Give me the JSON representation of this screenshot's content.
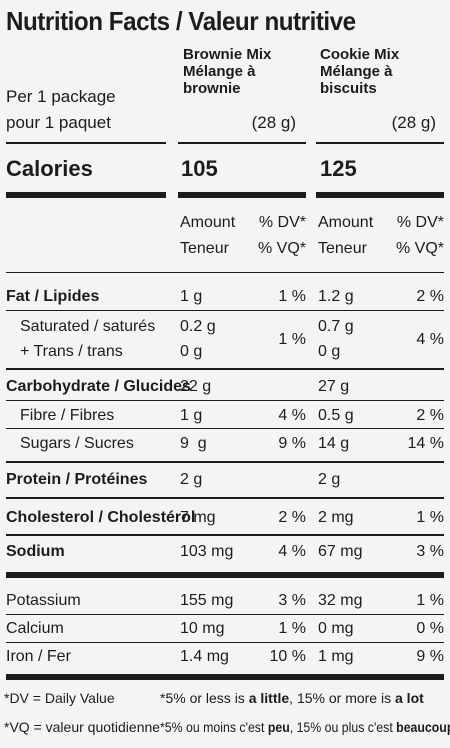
{
  "title": "Nutrition Facts / Valeur nutritive",
  "columns": [
    {
      "name_en": "Brownie Mix",
      "name_fr1": "Mélange à",
      "name_fr2": "brownie",
      "size": "(28 g)",
      "calories": "105"
    },
    {
      "name_en": "Cookie Mix",
      "name_fr1": "Mélange à",
      "name_fr2": "biscuits",
      "size": "(28 g)",
      "calories": "125"
    }
  ],
  "serving": {
    "line1": "Per 1 package",
    "line2": "pour 1 paquet"
  },
  "calories_label": "Calories",
  "headers": {
    "amount": "Amount",
    "teneur": "Teneur",
    "dv": "% DV*",
    "vq": "% VQ*"
  },
  "rows": {
    "fat": {
      "label": "Fat / Lipides",
      "a1": "1 g",
      "d1": "1 %",
      "a2": "1.2 g",
      "d2": "2 %"
    },
    "saturated": {
      "label": "Saturated / saturés",
      "a1": "0.2 g",
      "a2": "0.7 g"
    },
    "trans": {
      "label": "+ Trans / trans",
      "a1": "0 g",
      "a2": "0 g"
    },
    "sat_trans_dv": {
      "d1": "1 %",
      "d2": "4 %"
    },
    "carb": {
      "label": "Carbohydrate / Glucides",
      "a1": "22 g",
      "a2": "27 g"
    },
    "fibre": {
      "label": "Fibre / Fibres",
      "a1": "1 g",
      "d1": "4 %",
      "a2": "0.5 g",
      "d2": "2 %"
    },
    "sugars": {
      "label": "Sugars / Sucres",
      "a1": "9  g",
      "d1": "9 %",
      "a2": "14 g",
      "d2": "14 %"
    },
    "protein": {
      "label": "Protein / Protéines",
      "a1": "2 g",
      "a2": "2 g"
    },
    "cholesterol": {
      "label": "Cholesterol / Cholestérol",
      "a1": "7 mg",
      "d1": "2 %",
      "a2": "2 mg",
      "d2": "1 %"
    },
    "sodium": {
      "label": "Sodium",
      "a1": "103 mg",
      "d1": "4 %",
      "a2": "67 mg",
      "d2": "3 %"
    },
    "potassium": {
      "label": "Potassium",
      "a1": "155 mg",
      "d1": "3 %",
      "a2": "32 mg",
      "d2": "1 %"
    },
    "calcium": {
      "label": "Calcium",
      "a1": "10 mg",
      "d1": "1 %",
      "a2": "0 mg",
      "d2": "0 %"
    },
    "iron": {
      "label": "Iron / Fer",
      "a1": "1.4 mg",
      "d1": "10 %",
      "a2": "1 mg",
      "d2": "9 %"
    }
  },
  "footnotes": {
    "dv": "*DV = Daily Value",
    "vq": "*VQ = valeur quotidienne",
    "en_pre": "*5% or less is ",
    "en_little": "a little",
    "en_mid": ", 15% or more is ",
    "en_lot": "a lot",
    "fr_pre": "*5% ou moins c'est ",
    "fr_peu": "peu",
    "fr_mid": ", 15% ou plus c'est ",
    "fr_beaucoup": "beaucoup"
  }
}
